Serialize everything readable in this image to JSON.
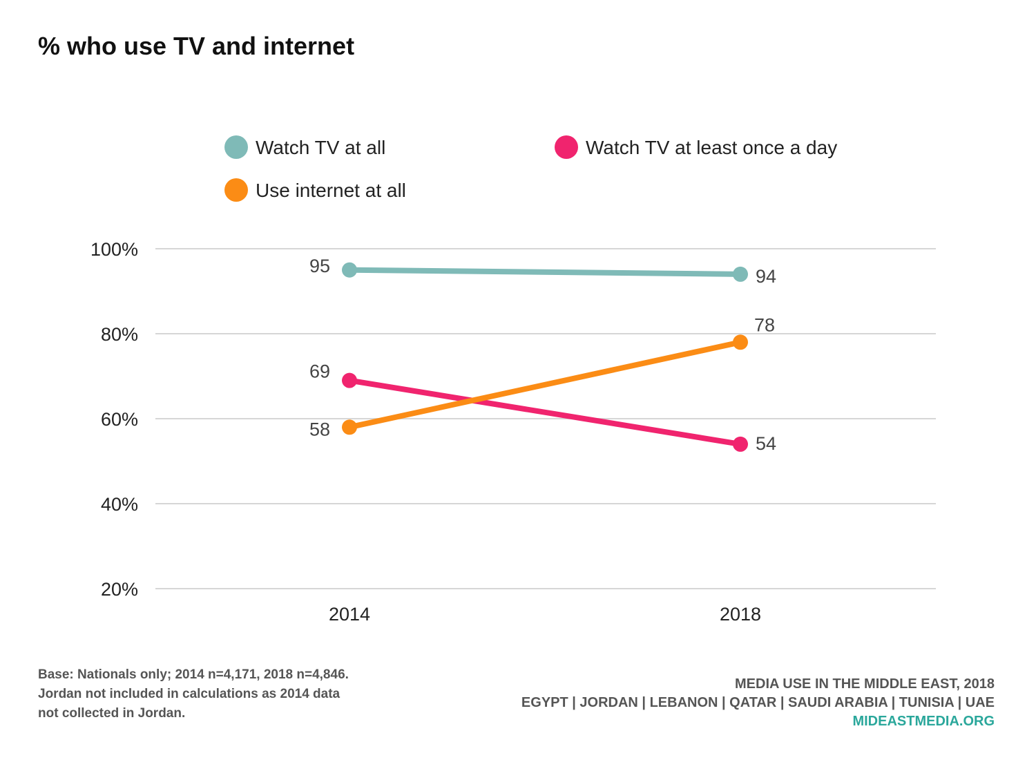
{
  "title": "% who use TV and internet",
  "chart_data": {
    "type": "line",
    "title": "% who use TV and internet",
    "categories": [
      "2014",
      "2018"
    ],
    "ylim": [
      20,
      100
    ],
    "yticks": [
      20,
      40,
      60,
      80,
      100
    ],
    "ytick_labels": [
      "20%",
      "40%",
      "60%",
      "80%",
      "100%"
    ],
    "xlabel": "",
    "ylabel": "",
    "grid": true,
    "series": [
      {
        "name": "Watch TV at all",
        "color": "#7fbab7",
        "values": [
          95,
          94
        ],
        "labels": [
          "95",
          "94"
        ]
      },
      {
        "name": "Watch TV at least once a day",
        "color": "#f0246e",
        "values": [
          69,
          54
        ],
        "labels": [
          "69",
          "54"
        ]
      },
      {
        "name": "Use internet at all",
        "color": "#fb8c15",
        "values": [
          58,
          78
        ],
        "labels": [
          "58",
          "78"
        ]
      }
    ]
  },
  "footnote": {
    "lines": [
      "Base: Nationals only; 2014 n=4,171, 2018 n=4,846.",
      "Jordan not included in calculations as 2014 data",
      "not collected in Jordan."
    ]
  },
  "credits": {
    "line1": "MEDIA USE IN THE MIDDLE EAST, 2018",
    "line2": "EGYPT | JORDAN | LEBANON | QATAR | SAUDI ARABIA | TUNISIA | UAE",
    "url": "MIDEASTMEDIA.ORG"
  }
}
